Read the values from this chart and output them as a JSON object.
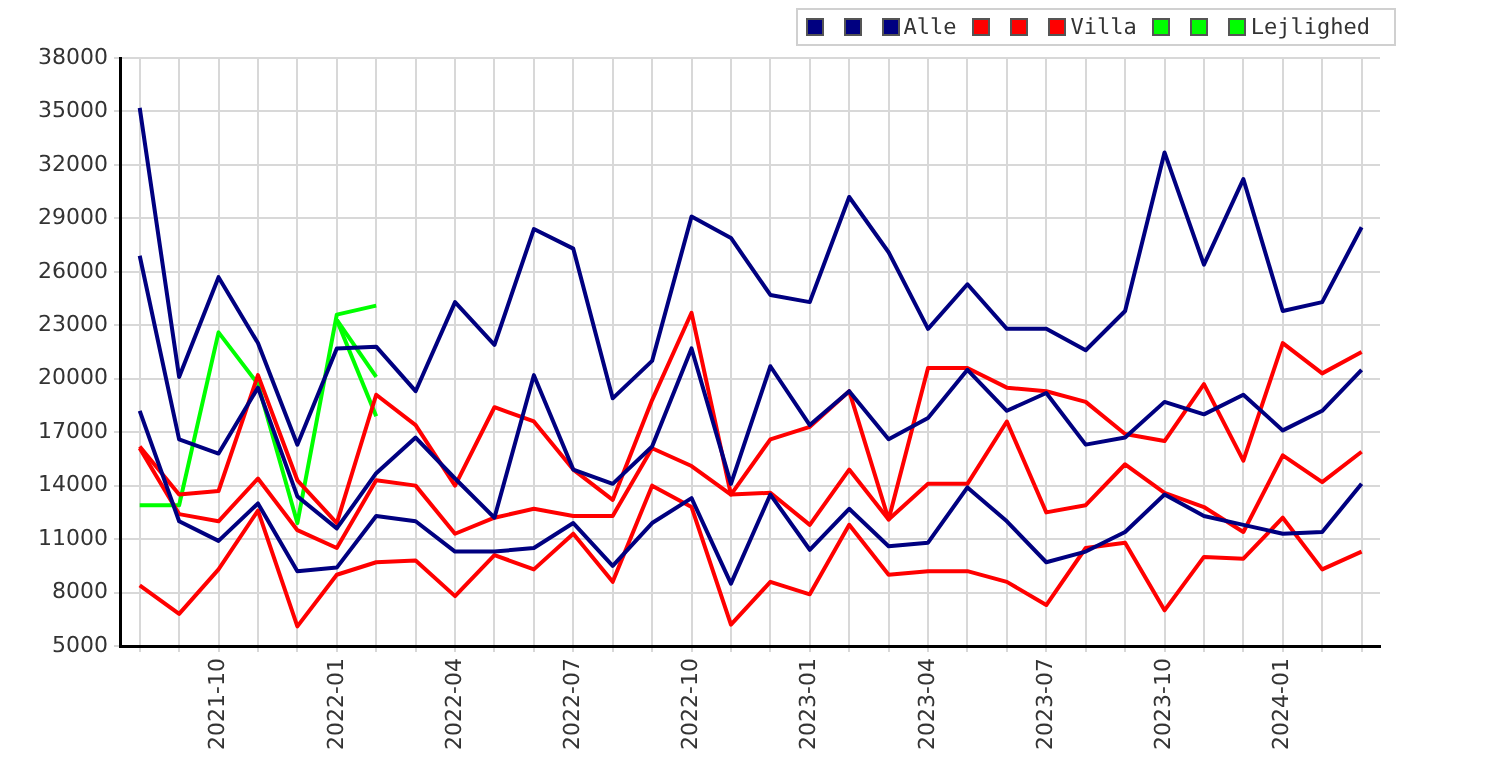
{
  "chart_data": {
    "type": "line",
    "x": [
      "2021-08",
      "2021-09",
      "2021-10",
      "2021-11",
      "2021-12",
      "2022-01",
      "2022-02",
      "2022-03",
      "2022-04",
      "2022-05",
      "2022-06",
      "2022-07",
      "2022-08",
      "2022-09",
      "2022-10",
      "2022-11",
      "2022-12",
      "2023-01",
      "2023-02",
      "2023-03",
      "2023-04",
      "2023-05",
      "2023-06",
      "2023-07",
      "2023-08",
      "2023-09",
      "2023-10",
      "2023-11",
      "2023-12",
      "2024-01",
      "2024-02",
      "2024-03"
    ],
    "series": [
      {
        "color": "#000080",
        "values": [
          35200,
          20100,
          25700,
          22000,
          16300,
          21700,
          21800,
          19300,
          24300,
          21900,
          28400,
          27300,
          18900,
          21000,
          29100,
          27900,
          24700,
          24300,
          30200,
          27100,
          22800,
          25300,
          22800,
          22800,
          21600,
          23800,
          32700,
          26400,
          31200,
          23800,
          24300,
          28500
        ]
      },
      {
        "color": "#000080",
        "values": [
          26900,
          16600,
          15800,
          19500,
          13400,
          11600,
          14700,
          16700,
          14400,
          12200,
          20200,
          14900,
          14100,
          16200,
          21700,
          14100,
          20700,
          17400,
          19300,
          16600,
          17800,
          20500,
          18200,
          19200,
          16300,
          16700,
          18700,
          18000,
          19100,
          17100,
          18200,
          20500
        ]
      },
      {
        "name": "Alle",
        "color": "#000080",
        "values": [
          18200,
          12000,
          10900,
          13000,
          9200,
          9400,
          12300,
          12000,
          10300,
          10300,
          10500,
          11900,
          9500,
          11900,
          13300,
          8500,
          13500,
          10400,
          12700,
          10600,
          10800,
          13900,
          12000,
          9700,
          10300,
          11400,
          13500,
          12300,
          11800,
          11300,
          11400,
          14100
        ]
      },
      {
        "color": "#ff0000",
        "values": [
          16200,
          13500,
          13700,
          20200,
          14300,
          11900,
          19100,
          17400,
          14000,
          18400,
          17600,
          14900,
          13200,
          18800,
          23700,
          13500,
          16600,
          17300,
          19300,
          12100,
          20600,
          20600,
          19500,
          19300,
          18700,
          16900,
          16500,
          19700,
          15400,
          22000,
          20300,
          21500
        ]
      },
      {
        "color": "#ff0000",
        "values": [
          16100,
          12400,
          12000,
          14400,
          11500,
          10500,
          14300,
          14000,
          11300,
          12200,
          12700,
          12300,
          12300,
          16100,
          15100,
          13500,
          13600,
          11800,
          14900,
          12100,
          14100,
          14100,
          17600,
          12500,
          12900,
          15200,
          13600,
          12800,
          11400,
          15700,
          14200,
          15900
        ]
      },
      {
        "name": "Villa",
        "color": "#ff0000",
        "values": [
          8400,
          6800,
          9300,
          12600,
          6100,
          9000,
          9700,
          9800,
          7800,
          10100,
          9300,
          11300,
          8600,
          14000,
          12800,
          6200,
          8600,
          7900,
          11800,
          9000,
          9200,
          9200,
          8600,
          7300,
          10500,
          10800,
          7000,
          10000,
          9900,
          12200,
          9300,
          10300
        ]
      },
      {
        "color": "#00ff00",
        "values": [
          12900,
          12900,
          22600,
          19700,
          11900,
          23600,
          24100,
          null,
          null,
          null,
          null,
          null,
          null,
          null,
          null,
          null,
          null,
          null,
          null,
          null,
          null,
          null,
          null,
          null,
          null,
          null,
          null,
          null,
          null,
          null,
          null,
          null
        ]
      },
      {
        "color": "#00ff00",
        "values": [
          null,
          null,
          null,
          null,
          null,
          23300,
          20100,
          null,
          null,
          null,
          null,
          null,
          null,
          null,
          null,
          null,
          null,
          null,
          null,
          null,
          null,
          null,
          null,
          null,
          null,
          null,
          null,
          null,
          null,
          null,
          null,
          null
        ]
      },
      {
        "name": "Lejlighed",
        "color": "#00ff00",
        "values": [
          null,
          null,
          null,
          null,
          null,
          23300,
          17900,
          null,
          null,
          null,
          null,
          null,
          null,
          null,
          null,
          null,
          null,
          null,
          null,
          null,
          null,
          null,
          null,
          null,
          null,
          null,
          null,
          null,
          null,
          null,
          null,
          null
        ]
      }
    ],
    "xlim": [
      "2021-07-16",
      "2024-03-15"
    ],
    "xticks": [
      {
        "value": "2021-08",
        "label": null
      },
      {
        "value": "2021-09",
        "label": null
      },
      "2021-10",
      {
        "value": "2021-11",
        "label": null
      },
      {
        "value": "2021-12",
        "label": null
      },
      "2022-01",
      {
        "value": "2022-02",
        "label": null
      },
      {
        "value": "2022-03",
        "label": null
      },
      "2022-04",
      {
        "value": "2022-05",
        "label": null
      },
      {
        "value": "2022-06",
        "label": null
      },
      "2022-07",
      {
        "value": "2022-08",
        "label": null
      },
      {
        "value": "2022-09",
        "label": null
      },
      "2022-10",
      {
        "value": "2022-11",
        "label": null
      },
      {
        "value": "2022-12",
        "label": null
      },
      "2023-01",
      {
        "value": "2023-02",
        "label": null
      },
      {
        "value": "2023-03",
        "label": null
      },
      "2023-04",
      {
        "value": "2023-05",
        "label": null
      },
      {
        "value": "2023-06",
        "label": null
      },
      "2023-07",
      {
        "value": "2023-08",
        "label": null
      },
      {
        "value": "2023-09",
        "label": null
      },
      "2023-10",
      {
        "value": "2023-11",
        "label": null
      },
      {
        "value": "2023-12",
        "label": null
      },
      "2024-01",
      {
        "value": "2024-02",
        "label": null
      },
      {
        "value": "2024-03",
        "label": null
      }
    ],
    "ylim": [
      5000,
      38000
    ],
    "yticks": [
      5000,
      8000,
      11000,
      14000,
      17000,
      20000,
      23000,
      26000,
      29000,
      32000,
      35000,
      38000
    ],
    "grid": true,
    "legend": "top right",
    "marker": "none",
    "line_style": "solid"
  }
}
